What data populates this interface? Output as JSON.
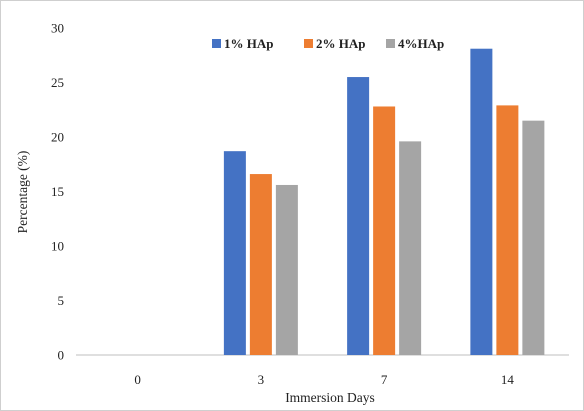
{
  "chart_data": {
    "type": "bar",
    "title": "",
    "xlabel": "Immersion Days",
    "ylabel": "Percentage (%)",
    "categories": [
      "0",
      "3",
      "7",
      "14"
    ],
    "series": [
      {
        "name": "1% HAp",
        "color": "#4472c4",
        "values": [
          0,
          18.7,
          25.5,
          28.1
        ]
      },
      {
        "name": "2% HAp",
        "color": "#ed7d31",
        "values": [
          0,
          16.6,
          22.8,
          22.9
        ]
      },
      {
        "name": "4%HAp",
        "color": "#a5a5a5",
        "values": [
          0,
          15.6,
          19.6,
          21.5
        ]
      }
    ],
    "ylim": [
      0,
      30
    ],
    "yticks": [
      0,
      5,
      10,
      15,
      20,
      25,
      30
    ],
    "grid": false,
    "legend_position": "top-right"
  }
}
